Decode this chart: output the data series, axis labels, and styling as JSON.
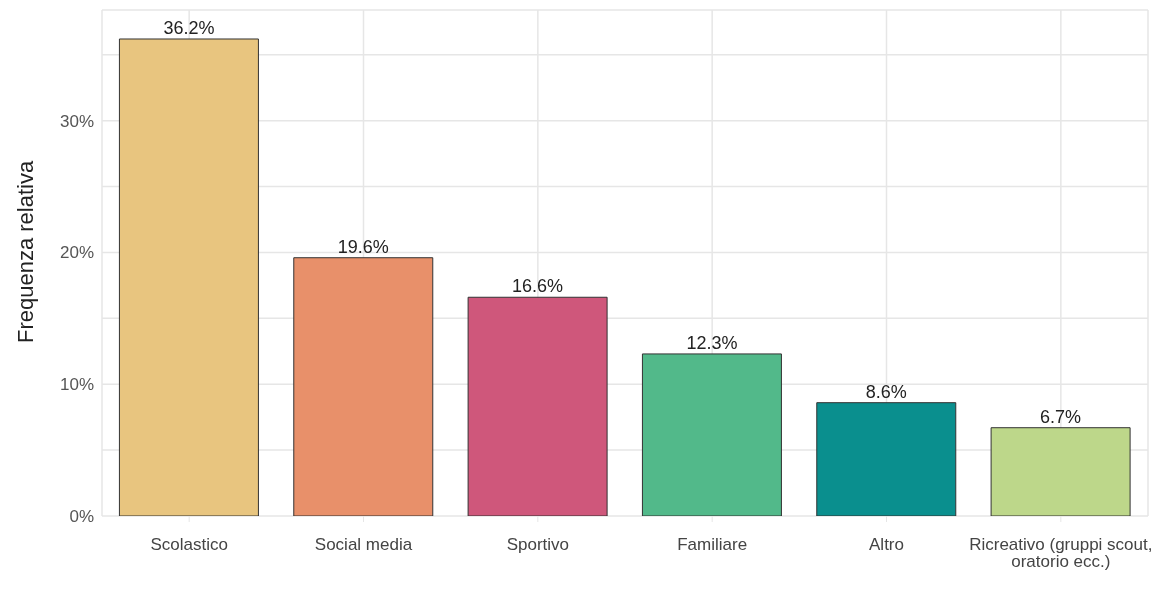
{
  "chart_data": {
    "type": "bar",
    "ylabel": "Frequenza relativa",
    "categories": [
      "Scolastico",
      "Social media",
      "Sportivo",
      "Familiare",
      "Altro",
      "Ricreativo (gruppi scout, oratorio ecc.)"
    ],
    "values": [
      36.2,
      19.6,
      16.6,
      12.3,
      8.6,
      6.7
    ],
    "colors": [
      "#e8c57f",
      "#e8906a",
      "#cf577b",
      "#52b98a",
      "#0a8f8e",
      "#bdd78a"
    ],
    "value_labels": [
      "36.2%",
      "19.6%",
      "16.6%",
      "12.3%",
      "8.6%",
      "6.7%"
    ],
    "ylim": [
      0,
      38.4
    ],
    "yticks": [
      {
        "value": 0,
        "label": "0%"
      },
      {
        "value": 5,
        "label": null
      },
      {
        "value": 10,
        "label": "10%"
      },
      {
        "value": 15,
        "label": null
      },
      {
        "value": 20,
        "label": "20%"
      },
      {
        "value": 25,
        "label": null
      },
      {
        "value": 30,
        "label": "30%"
      },
      {
        "value": 35,
        "label": null
      }
    ],
    "grid": true,
    "legend": false
  }
}
